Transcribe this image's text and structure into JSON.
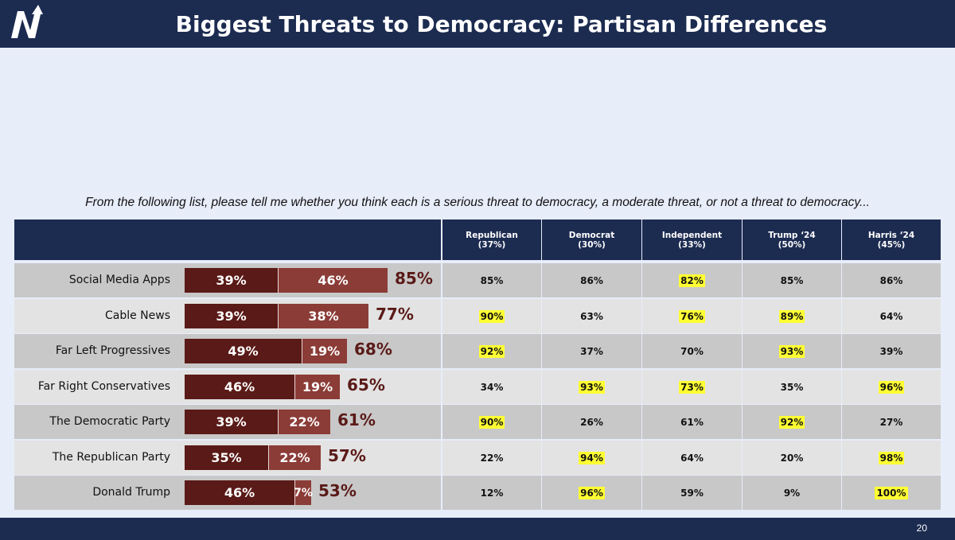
{
  "header": {
    "title": "Biggest Threats to Democracy: Partisan Differences",
    "colors": {
      "navy": "#1c2b50",
      "serious": "#5a1a17",
      "moderate": "#8b3c37",
      "highlight": "#ffff33"
    }
  },
  "question": "From the following list, please tell me whether you think each is a serious threat to democracy, a moderate threat, or not a threat to democracy...",
  "table": {
    "columns": [
      {
        "name": "Republican",
        "share": "(37%)"
      },
      {
        "name": "Democrat",
        "share": "(30%)"
      },
      {
        "name": "Independent",
        "share": "(33%)"
      },
      {
        "name": "Trump ‘24",
        "share": "(50%)"
      },
      {
        "name": "Harris ‘24",
        "share": "(45%)"
      }
    ]
  },
  "chart_data": {
    "type": "bar",
    "stacked": true,
    "orientation": "horizontal",
    "categories": [
      "Social Media Apps",
      "Cable News",
      "Far Left Progressives",
      "Far Right Conservatives",
      "The Democratic Party",
      "The Republican Party",
      "Donald Trump"
    ],
    "series": [
      {
        "values": [
          39,
          39,
          49,
          46,
          39,
          35,
          46
        ],
        "labels": [
          "39%",
          "39%",
          "49%",
          "46%",
          "39%",
          "35%",
          "46%"
        ]
      },
      {
        "values": [
          46,
          38,
          19,
          19,
          22,
          22,
          7
        ],
        "labels": [
          "46%",
          "38%",
          "19%",
          "19%",
          "22%",
          "22%",
          "7%"
        ]
      }
    ],
    "totals": [
      "85%",
      "77%",
      "68%",
      "65%",
      "61%",
      "57%",
      "53%"
    ],
    "rows": [
      {
        "cells": [
          "85%",
          "86%",
          "82%",
          "85%",
          "86%"
        ],
        "highlight": [
          false,
          false,
          true,
          false,
          false
        ]
      },
      {
        "cells": [
          "90%",
          "63%",
          "76%",
          "89%",
          "64%"
        ],
        "highlight": [
          true,
          false,
          true,
          true,
          false
        ]
      },
      {
        "cells": [
          "92%",
          "37%",
          "70%",
          "93%",
          "39%"
        ],
        "highlight": [
          true,
          false,
          false,
          true,
          false
        ]
      },
      {
        "cells": [
          "34%",
          "93%",
          "73%",
          "35%",
          "96%"
        ],
        "highlight": [
          false,
          true,
          true,
          false,
          true
        ]
      },
      {
        "cells": [
          "90%",
          "26%",
          "61%",
          "92%",
          "27%"
        ],
        "highlight": [
          true,
          false,
          false,
          true,
          false
        ]
      },
      {
        "cells": [
          "22%",
          "94%",
          "64%",
          "20%",
          "98%"
        ],
        "highlight": [
          false,
          true,
          false,
          false,
          true
        ]
      },
      {
        "cells": [
          "12%",
          "96%",
          "59%",
          "9%",
          "100%"
        ],
        "highlight": [
          false,
          true,
          false,
          false,
          true
        ]
      }
    ]
  },
  "footer": {
    "page_number": "20"
  }
}
